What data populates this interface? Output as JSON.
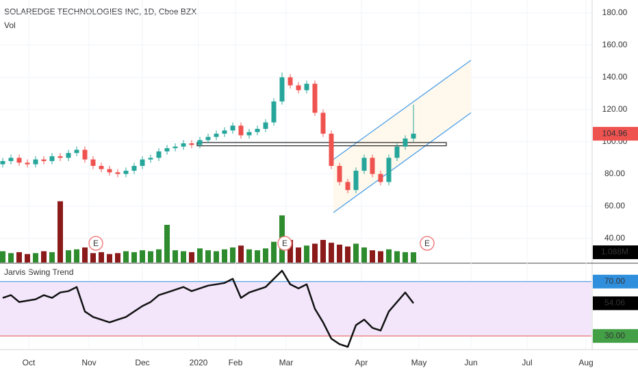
{
  "chart_data": {
    "type": "candlestick",
    "title": "SOLAREDGE TECHNOLOGIES INC, 1D, Cboe BZX",
    "x": [
      1,
      4,
      7,
      10,
      13,
      16,
      19,
      22,
      25,
      28,
      31,
      34,
      37,
      40,
      43,
      46,
      49,
      52,
      55,
      58,
      61,
      64,
      67,
      70,
      73,
      76,
      79,
      82,
      85,
      88,
      91,
      94,
      97,
      100,
      103,
      106,
      109,
      112,
      115,
      118,
      121,
      124,
      127,
      130,
      133,
      136,
      139,
      142,
      145,
      148,
      151
    ],
    "open": [
      86,
      88,
      90,
      87,
      86,
      89,
      88,
      91,
      90,
      93,
      95,
      89,
      85,
      83,
      81,
      80,
      82,
      85,
      89,
      90,
      94,
      96,
      97,
      99,
      98,
      101,
      103,
      105,
      107,
      110,
      104,
      106,
      108,
      112,
      125,
      140,
      135,
      132,
      136,
      118,
      105,
      85,
      75,
      70,
      82,
      90,
      80,
      75,
      90,
      97,
      102
    ],
    "high": [
      90,
      92,
      92,
      89,
      91,
      91,
      93,
      93,
      95,
      97,
      97,
      91,
      87,
      85,
      83,
      84,
      87,
      91,
      92,
      96,
      98,
      99,
      101,
      101,
      103,
      105,
      107,
      109,
      112,
      112,
      108,
      110,
      114,
      127,
      143,
      142,
      137,
      138,
      138,
      120,
      107,
      87,
      77,
      84,
      92,
      92,
      82,
      92,
      99,
      104,
      123
    ],
    "low": [
      84,
      86,
      85,
      84,
      84,
      86,
      86,
      88,
      88,
      91,
      87,
      83,
      81,
      79,
      78,
      78,
      80,
      83,
      87,
      88,
      92,
      94,
      95,
      96,
      96,
      99,
      101,
      103,
      105,
      102,
      102,
      104,
      106,
      110,
      123,
      133,
      130,
      130,
      116,
      103,
      83,
      73,
      68,
      68,
      80,
      78,
      73,
      73,
      88,
      95,
      100
    ],
    "close": [
      88,
      90,
      87,
      86,
      89,
      88,
      91,
      90,
      93,
      95,
      89,
      85,
      83,
      81,
      80,
      82,
      85,
      89,
      90,
      94,
      96,
      97,
      99,
      98,
      101,
      103,
      105,
      107,
      110,
      104,
      106,
      108,
      112,
      125,
      140,
      135,
      132,
      136,
      118,
      105,
      85,
      75,
      70,
      82,
      90,
      80,
      75,
      90,
      97,
      102,
      105
    ],
    "up_color": "#26a69a",
    "down_color": "#ef5350",
    "xlim": [
      0,
      216
    ],
    "ylim": [
      25,
      188
    ],
    "xticks": [
      {
        "value": 10.5,
        "label": "Oct"
      },
      {
        "value": 32.5,
        "label": "Nov"
      },
      {
        "value": 52,
        "label": "Dec"
      },
      {
        "value": 72.5,
        "label": "2020"
      },
      {
        "value": 86,
        "label": "Feb"
      },
      {
        "value": 104.5,
        "label": "Mar"
      },
      {
        "value": 132,
        "label": "Apr"
      },
      {
        "value": 153,
        "label": "May"
      },
      {
        "value": 172,
        "label": "Jun"
      },
      {
        "value": 192.5,
        "label": "Jul"
      },
      {
        "value": 214,
        "label": "Aug"
      }
    ],
    "yticks": [
      {
        "value": 40,
        "label": "40.00"
      },
      {
        "value": 60,
        "label": "60.00"
      },
      {
        "value": 80,
        "label": "80.00"
      },
      {
        "value": 100,
        "label": "100.00"
      },
      {
        "value": 120,
        "label": "120.00"
      },
      {
        "value": 140,
        "label": "140.00"
      },
      {
        "value": 160,
        "label": "160.00"
      },
      {
        "value": 180,
        "label": "180.00"
      }
    ],
    "last_price": 104.96,
    "channel": [
      {
        "x": [
          121.75,
          172
        ],
        "y": [
          89,
          150.6
        ],
        "color": "#4a9ee8"
      },
      {
        "x": [
          121.75,
          172
        ],
        "y": [
          56,
          118
        ],
        "color": "#4a9ee8"
      }
    ],
    "level": {
      "x": [
        72,
        163
      ],
      "y": [
        99.5,
        97.5
      ]
    },
    "events": {
      "x": [
        35,
        104,
        156
      ],
      "labels": [
        "E",
        "E",
        "E"
      ]
    },
    "volume": {
      "name": "Vol",
      "ylim": [
        0,
        8
      ],
      "values": [
        1.2,
        1.0,
        1.1,
        0.9,
        1.0,
        1.2,
        1.1,
        6.5,
        1.3,
        1.4,
        1.6,
        1.0,
        1.1,
        0.9,
        1.0,
        1.2,
        1.1,
        1.3,
        1.2,
        1.4,
        4.0,
        1.3,
        1.2,
        1.1,
        1.5,
        1.3,
        1.2,
        1.4,
        1.6,
        1.8,
        1.4,
        1.3,
        1.5,
        2.2,
        5.0,
        2.4,
        1.6,
        1.8,
        2.0,
        2.4,
        2.1,
        1.9,
        1.7,
        2.0,
        1.6,
        1.3,
        1.2,
        1.4,
        1.2,
        1.1,
        1.088
      ],
      "last": {
        "value": 1.088,
        "label": "1.088M"
      },
      "up_color": "#2e8b2e",
      "down_color": "#8b1a1a"
    },
    "rsi": {
      "name": "Jarvis Swing Trend",
      "ylim": [
        20,
        83
      ],
      "values": [
        58,
        60,
        55,
        56,
        57,
        60,
        58,
        62,
        63,
        66,
        48,
        44,
        42,
        40,
        42,
        44,
        48,
        52,
        55,
        60,
        62,
        64,
        66,
        63,
        65,
        67,
        68,
        69,
        72,
        58,
        62,
        64,
        66,
        72,
        78,
        68,
        65,
        68,
        50,
        40,
        28,
        24,
        22,
        38,
        42,
        36,
        34,
        48,
        55,
        62,
        54.06
      ],
      "upper": 70,
      "lower": 30,
      "upper_label": "70.00",
      "lower_label": "30.00",
      "upper_color": "#2f8fdd",
      "lower_color": "#e05050",
      "band_color": "#f3e6fb",
      "line_color": "#111111"
    }
  }
}
